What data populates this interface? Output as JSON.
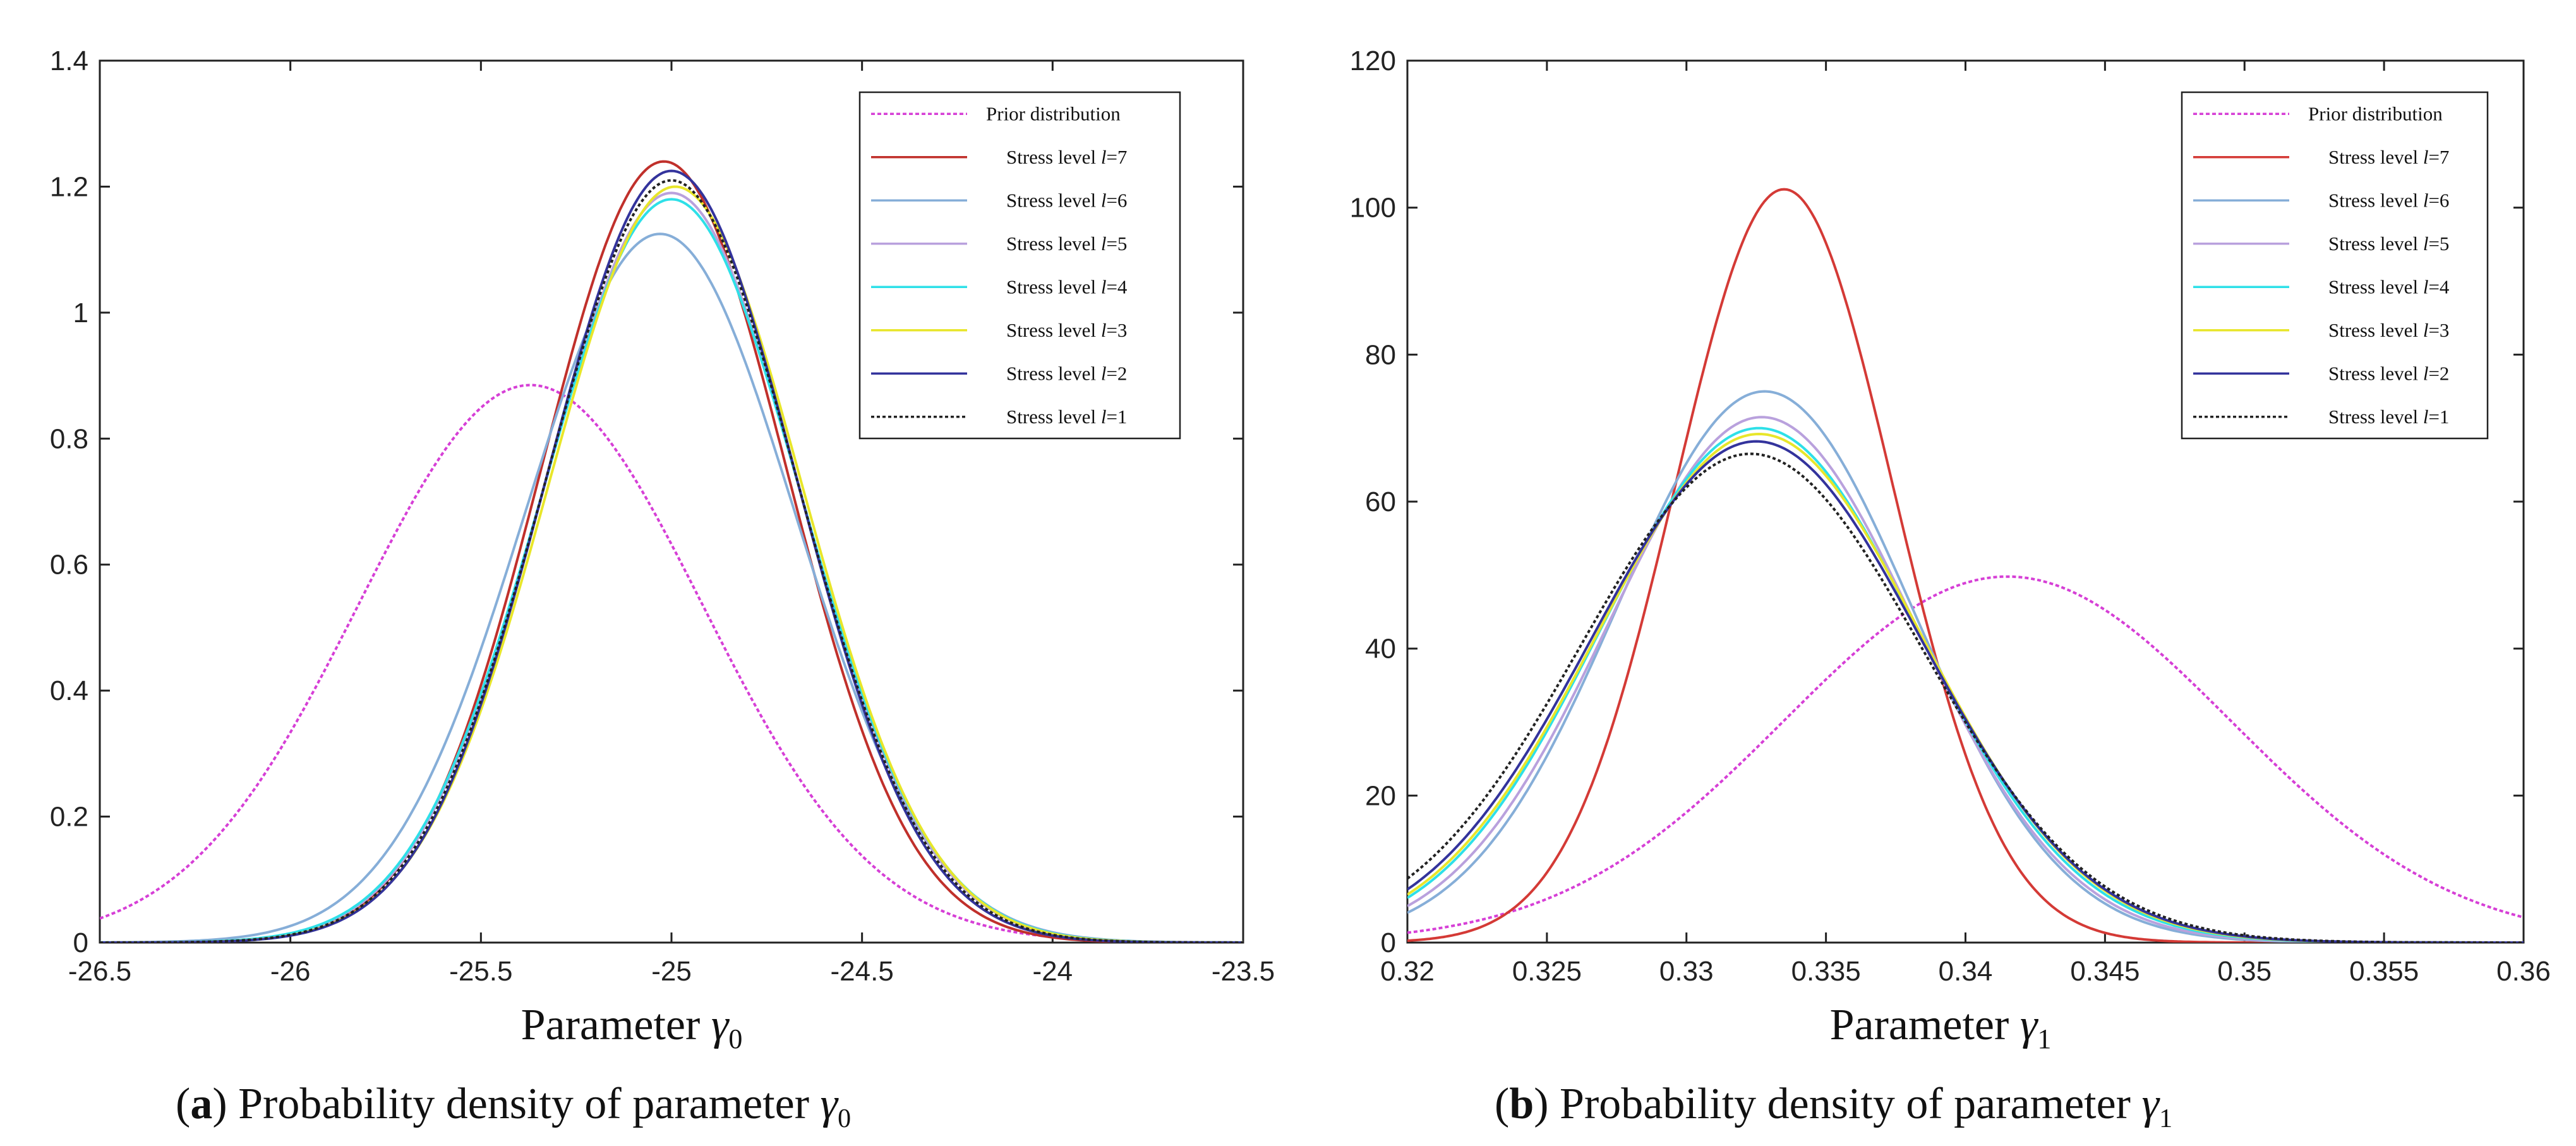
{
  "chart_data": [
    {
      "type": "line",
      "panel": "a",
      "caption_letter": "a",
      "caption_text": ") Probability density of parameter",
      "caption_symbol": "γ",
      "caption_sub": "0",
      "xlabel_text": "Parameter ",
      "xlabel_symbol": "γ",
      "xlabel_sub": "0",
      "xlim": [
        -26.5,
        -23.5
      ],
      "ylim": [
        0,
        1.4
      ],
      "xticks": [
        -26.5,
        -26,
        -25.5,
        -25,
        -24.5,
        -24,
        -23.5
      ],
      "xtick_labels": [
        "-26.5",
        "-26",
        "-25.5",
        "-25",
        "-24.5",
        "-24",
        "-23.5"
      ],
      "yticks": [
        0,
        0.2,
        0.4,
        0.6,
        0.8,
        1,
        1.2,
        1.4
      ],
      "ytick_labels": [
        "0",
        "0.2",
        "0.4",
        "0.6",
        "0.8",
        "1",
        "1.2",
        "1.4"
      ],
      "legend_position": "top-right",
      "series": [
        {
          "name": "Prior distribution",
          "legend_text": "Prior distribution",
          "color": "#d63fd6",
          "dash": "6,4",
          "mean": -25.37,
          "sd": 0.451,
          "peak": 0.885
        },
        {
          "name": "Stress level l=7",
          "legend_prefix": "Stress level ",
          "legend_var": "l",
          "legend_suffix": "=7",
          "color": "#c0302b",
          "dash": "",
          "mean": -25.02,
          "sd": 0.322,
          "peak": 1.24
        },
        {
          "name": "Stress level l=6",
          "legend_prefix": "Stress level ",
          "legend_var": "l",
          "legend_suffix": "=6",
          "color": "#86aed8",
          "dash": "",
          "mean": -25.03,
          "sd": 0.354,
          "peak": 1.125
        },
        {
          "name": "Stress level l=5",
          "legend_prefix": "Stress level ",
          "legend_var": "l",
          "legend_suffix": "=5",
          "color": "#b9a1dd",
          "dash": "",
          "mean": -25.0,
          "sd": 0.335,
          "peak": 1.19
        },
        {
          "name": "Stress level l=4",
          "legend_prefix": "Stress level ",
          "legend_var": "l",
          "legend_suffix": "=4",
          "color": "#2ee0e8",
          "dash": "",
          "mean": -25.0,
          "sd": 0.338,
          "peak": 1.18
        },
        {
          "name": "Stress level l=3",
          "legend_prefix": "Stress level ",
          "legend_var": "l",
          "legend_suffix": "=3",
          "color": "#e8e62a",
          "dash": "",
          "mean": -24.99,
          "sd": 0.332,
          "peak": 1.2
        },
        {
          "name": "Stress level l=2",
          "legend_prefix": "Stress level ",
          "legend_var": "l",
          "legend_suffix": "=2",
          "color": "#33339c",
          "dash": "",
          "mean": -25.0,
          "sd": 0.326,
          "peak": 1.225
        },
        {
          "name": "Stress level l=1",
          "legend_prefix": "Stress level ",
          "legend_var": "l",
          "legend_suffix": "=1",
          "color": "#222222",
          "dash": "5,4",
          "mean": -25.0,
          "sd": 0.33,
          "peak": 1.21
        }
      ]
    },
    {
      "type": "line",
      "panel": "b",
      "caption_letter": "b",
      "caption_text": ") Probability density of parameter",
      "caption_symbol": "γ",
      "caption_sub": "1",
      "xlabel_text": "Parameter ",
      "xlabel_symbol": "γ",
      "xlabel_sub": "1",
      "xlim": [
        0.32,
        0.36
      ],
      "ylim": [
        0,
        120
      ],
      "xticks": [
        0.32,
        0.325,
        0.33,
        0.335,
        0.34,
        0.345,
        0.35,
        0.355,
        0.36
      ],
      "xtick_labels": [
        "0.32",
        "0.325",
        "0.33",
        "0.335",
        "0.34",
        "0.345",
        "0.35",
        "0.355",
        "0.36"
      ],
      "yticks": [
        0,
        20,
        40,
        60,
        80,
        100,
        120
      ],
      "ytick_labels": [
        "0",
        "20",
        "40",
        "60",
        "80",
        "100",
        "120"
      ],
      "legend_position": "top-right",
      "series": [
        {
          "name": "Prior distribution",
          "legend_text": "Prior distribution",
          "color": "#d63fd6",
          "dash": "6,4",
          "mean": 0.3415,
          "sd": 0.008,
          "peak": 49.8
        },
        {
          "name": "Stress level l=7",
          "legend_prefix": "Stress level ",
          "legend_var": "l",
          "legend_suffix": "=7",
          "color": "#d43a36",
          "dash": "",
          "mean": 0.3335,
          "sd": 0.0039,
          "peak": 102.5
        },
        {
          "name": "Stress level l=6",
          "legend_prefix": "Stress level ",
          "legend_var": "l",
          "legend_suffix": "=6",
          "color": "#86aed8",
          "dash": "",
          "mean": 0.3328,
          "sd": 0.0053,
          "peak": 75.0
        },
        {
          "name": "Stress level l=5",
          "legend_prefix": "Stress level ",
          "legend_var": "l",
          "legend_suffix": "=5",
          "color": "#b9a1dd",
          "dash": "",
          "mean": 0.3327,
          "sd": 0.0055,
          "peak": 71.5
        },
        {
          "name": "Stress level l=4",
          "legend_prefix": "Stress level ",
          "legend_var": "l",
          "legend_suffix": "=4",
          "color": "#2ee0e8",
          "dash": "",
          "mean": 0.3326,
          "sd": 0.0057,
          "peak": 70.0
        },
        {
          "name": "Stress level l=3",
          "legend_prefix": "Stress level ",
          "legend_var": "l",
          "legend_suffix": "=3",
          "color": "#e8e62a",
          "dash": "",
          "mean": 0.3326,
          "sd": 0.0058,
          "peak": 69.2
        },
        {
          "name": "Stress level l=2",
          "legend_prefix": "Stress level ",
          "legend_var": "l",
          "legend_suffix": "=2",
          "color": "#33339c",
          "dash": "",
          "mean": 0.3325,
          "sd": 0.0059,
          "peak": 68.2
        },
        {
          "name": "Stress level l=1",
          "legend_prefix": "Stress level ",
          "legend_var": "l",
          "legend_suffix": "=1",
          "color": "#222222",
          "dash": "5,4",
          "mean": 0.3323,
          "sd": 0.0061,
          "peak": 66.5
        }
      ]
    }
  ]
}
